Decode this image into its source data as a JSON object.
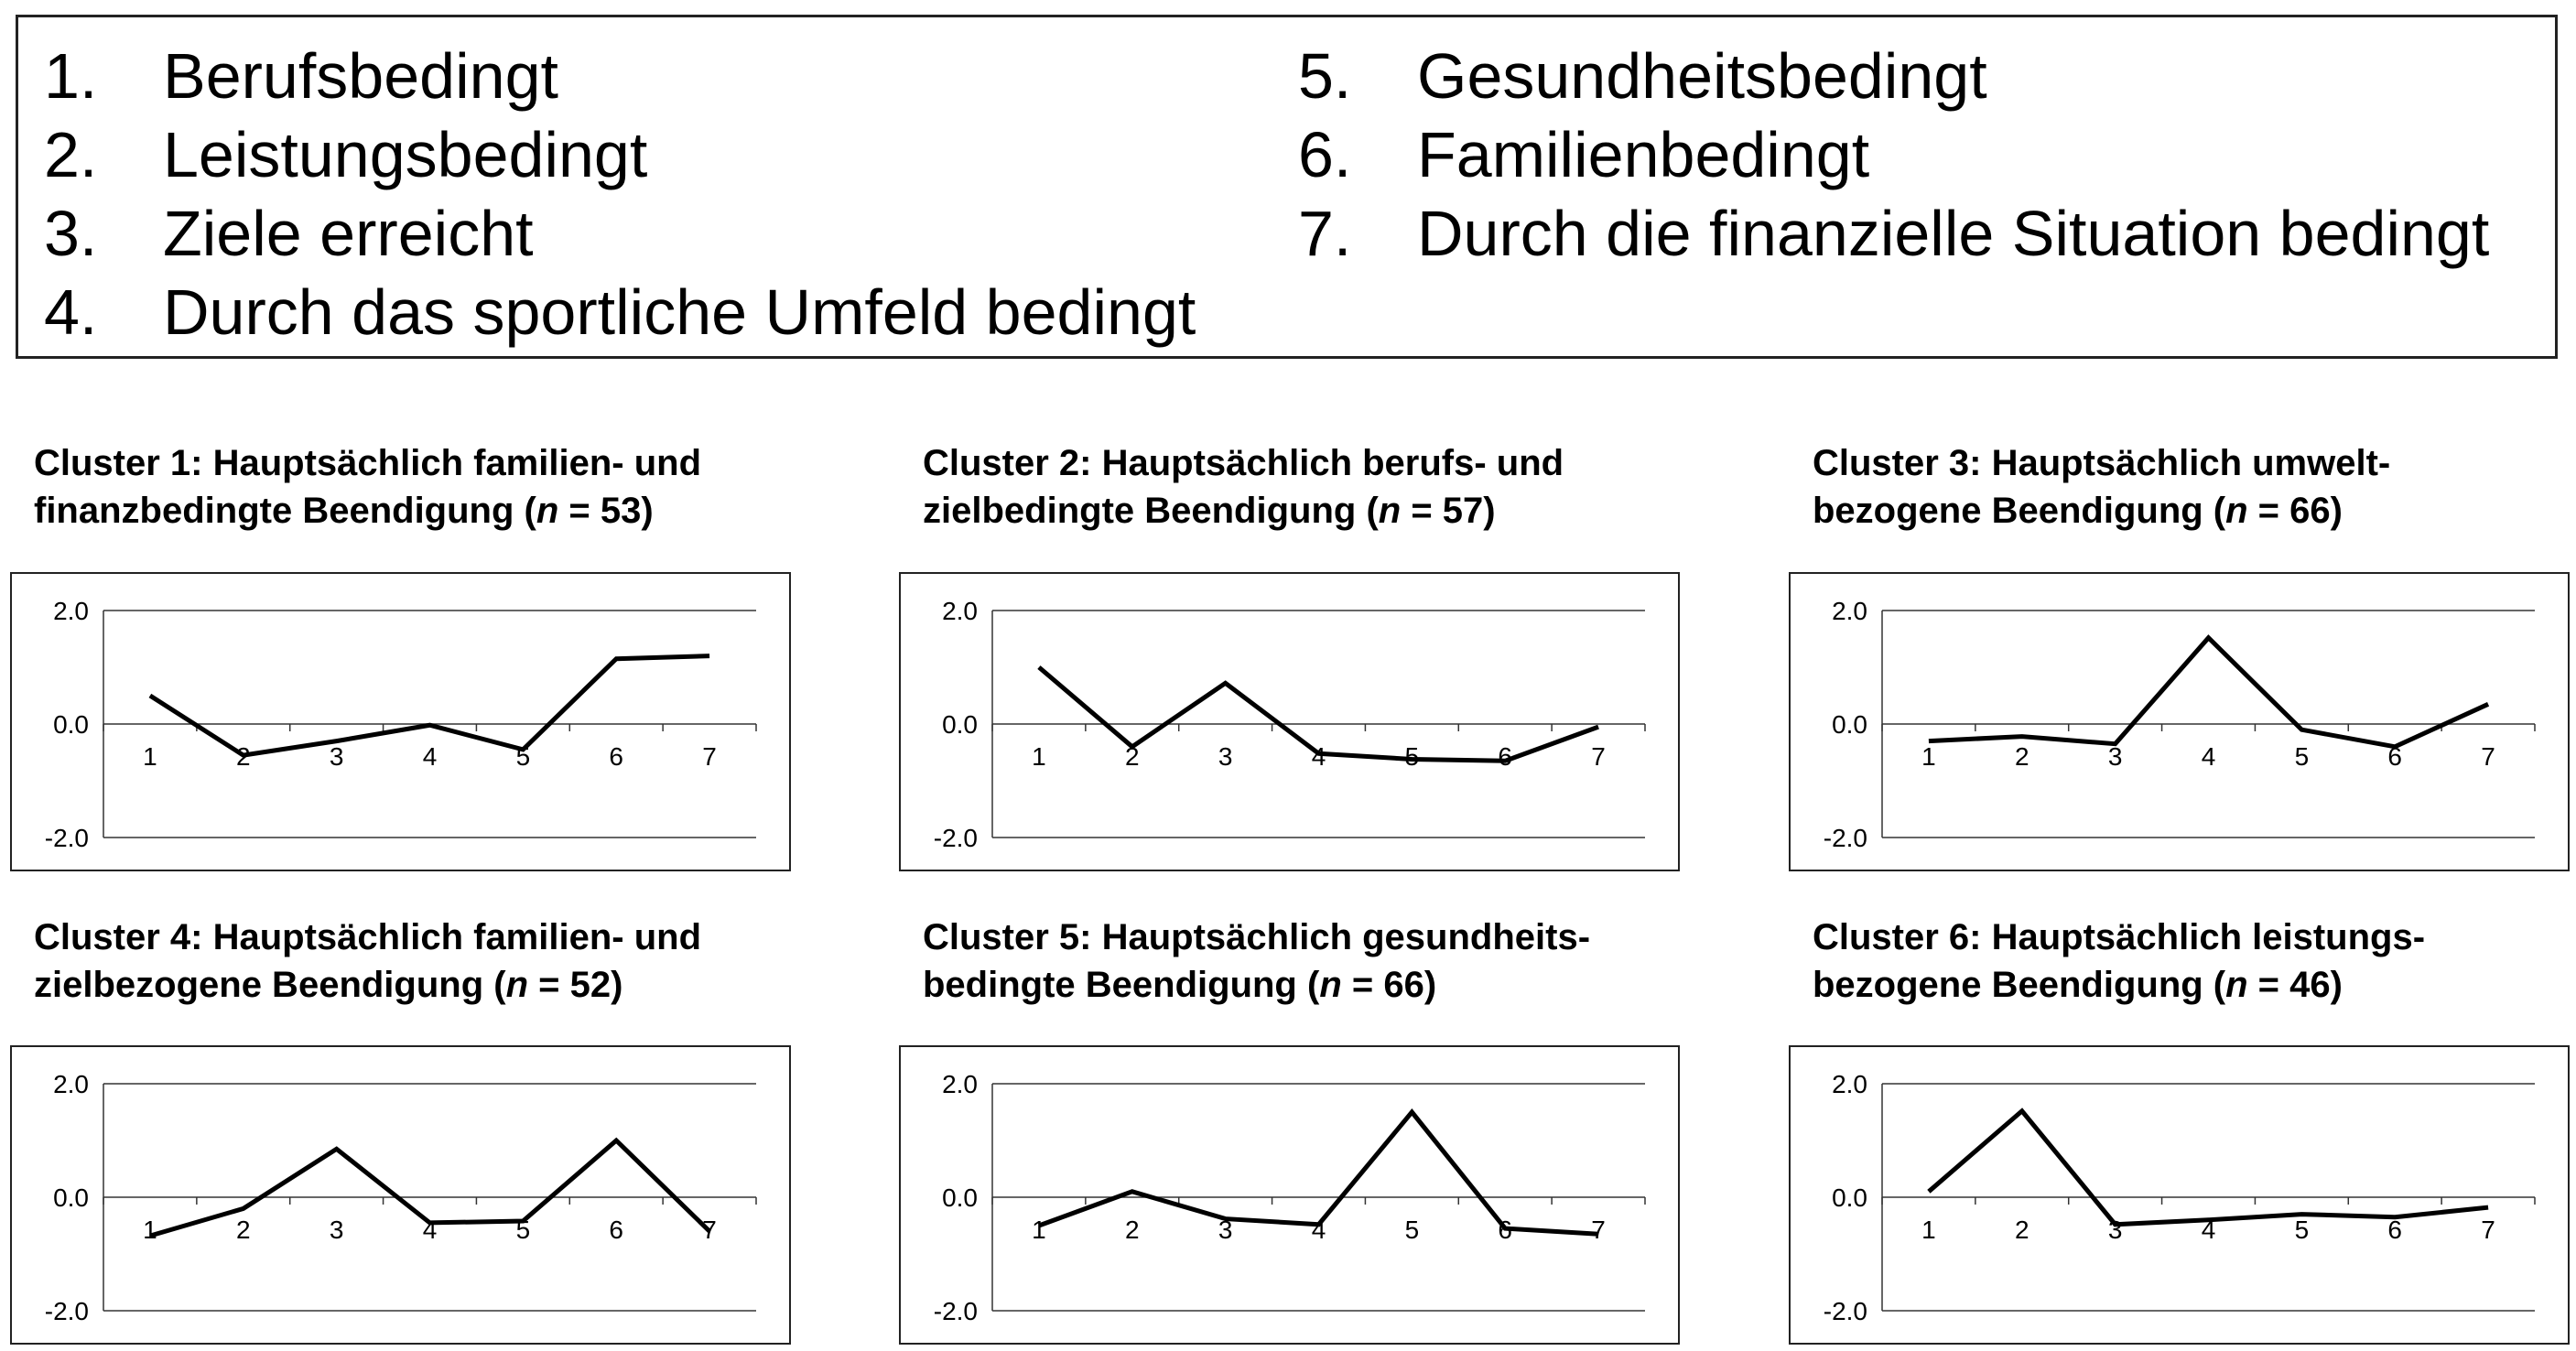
{
  "legend": {
    "items": [
      {
        "num": "1.",
        "label": "Berufsbedingt"
      },
      {
        "num": "2.",
        "label": "Leistungsbedingt"
      },
      {
        "num": "3.",
        "label": "Ziele erreicht"
      },
      {
        "num": "4.",
        "label": "Durch das sportliche Umfeld bedingt"
      },
      {
        "num": "5.",
        "label": "Gesundheitsbedingt"
      },
      {
        "num": "6.",
        "label": "Familienbedingt"
      },
      {
        "num": "7.",
        "label": "Durch die finanzielle Situation bedingt"
      }
    ]
  },
  "chart_data": [
    {
      "type": "line",
      "title_line1": "Cluster 1: Hauptsächlich familien- und",
      "title_line2_pre": "finanzbedingte Beendigung (",
      "title_n_symbol": "n",
      "title_line2_post": " = 53)",
      "x": [
        "1",
        "2",
        "3",
        "4",
        "5",
        "6",
        "7"
      ],
      "values": [
        0.5,
        -0.55,
        -0.3,
        -0.02,
        -0.45,
        1.15,
        1.2
      ],
      "ylim": [
        -2.0,
        2.0
      ],
      "y_ticks": [
        "2.0",
        "0.0",
        "-2.0"
      ],
      "grid": "horizontal"
    },
    {
      "type": "line",
      "title_line1": "Cluster 2: Hauptsächlich berufs- und",
      "title_line2_pre": "zielbedingte Beendigung (",
      "title_n_symbol": "n",
      "title_line2_post": " = 57)",
      "x": [
        "1",
        "2",
        "3",
        "4",
        "5",
        "6",
        "7"
      ],
      "values": [
        1.0,
        -0.4,
        0.72,
        -0.52,
        -0.62,
        -0.65,
        -0.05
      ],
      "ylim": [
        -2.0,
        2.0
      ],
      "y_ticks": [
        "2.0",
        "0.0",
        "-2.0"
      ],
      "grid": "horizontal"
    },
    {
      "type": "line",
      "title_line1": "Cluster 3: Hauptsächlich umwelt-",
      "title_line2_pre": "bezogene Beendigung (",
      "title_n_symbol": "n",
      "title_line2_post": " = 66)",
      "x": [
        "1",
        "2",
        "3",
        "4",
        "5",
        "6",
        "7"
      ],
      "values": [
        -0.3,
        -0.22,
        -0.35,
        1.52,
        -0.1,
        -0.4,
        0.35
      ],
      "ylim": [
        -2.0,
        2.0
      ],
      "y_ticks": [
        "2.0",
        "0.0",
        "-2.0"
      ],
      "grid": "horizontal"
    },
    {
      "type": "line",
      "title_line1": "Cluster 4: Hauptsächlich familien- und",
      "title_line2_pre": "zielbezogene Beendigung (",
      "title_n_symbol": "n",
      "title_line2_post": " = 52)",
      "x": [
        "1",
        "2",
        "3",
        "4",
        "5",
        "6",
        "7"
      ],
      "values": [
        -0.68,
        -0.2,
        0.85,
        -0.45,
        -0.42,
        1.0,
        -0.6
      ],
      "ylim": [
        -2.0,
        2.0
      ],
      "y_ticks": [
        "2.0",
        "0.0",
        "-2.0"
      ],
      "grid": "horizontal"
    },
    {
      "type": "line",
      "title_line1": "Cluster 5: Hauptsächlich gesundheits-",
      "title_line2_pre": "bedingte Beendigung (",
      "title_n_symbol": "n",
      "title_line2_post": " = 66)",
      "x": [
        "1",
        "2",
        "3",
        "4",
        "5",
        "6",
        "7"
      ],
      "values": [
        -0.5,
        0.1,
        -0.38,
        -0.48,
        1.5,
        -0.55,
        -0.65
      ],
      "ylim": [
        -2.0,
        2.0
      ],
      "y_ticks": [
        "2.0",
        "0.0",
        "-2.0"
      ],
      "grid": "horizontal"
    },
    {
      "type": "line",
      "title_line1": "Cluster 6: Hauptsächlich leistungs-",
      "title_line2_pre": "bezogene Beendigung (",
      "title_n_symbol": "n",
      "title_line2_post": " = 46)",
      "x": [
        "1",
        "2",
        "3",
        "4",
        "5",
        "6",
        "7"
      ],
      "values": [
        0.1,
        1.52,
        -0.48,
        -0.4,
        -0.3,
        -0.35,
        -0.18
      ],
      "ylim": [
        -2.0,
        2.0
      ],
      "y_ticks": [
        "2.0",
        "0.0",
        "-2.0"
      ],
      "grid": "horizontal"
    }
  ]
}
